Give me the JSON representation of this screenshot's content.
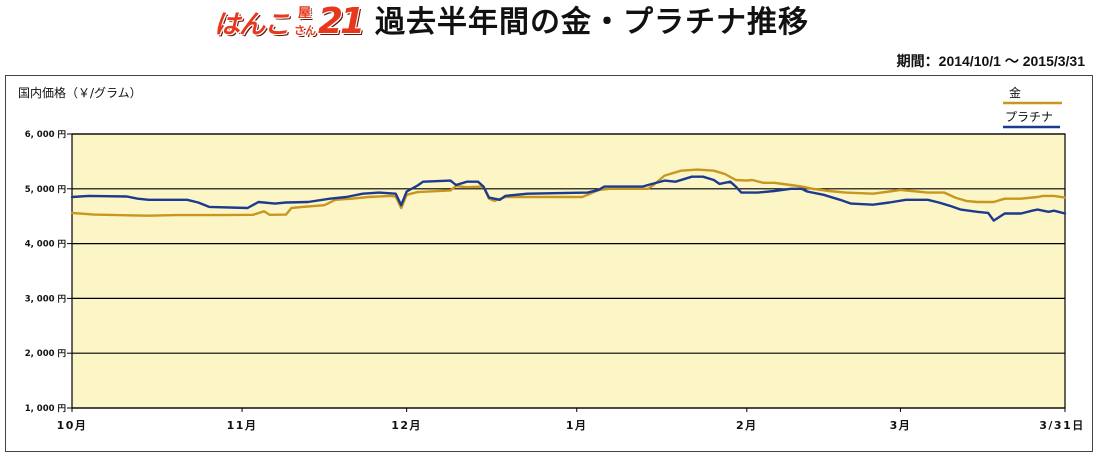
{
  "logo": {
    "main": "はんこ",
    "top": "屋",
    "bottom": "さん",
    "number": "21",
    "color": "#e5381c"
  },
  "chart_data": {
    "type": "line",
    "title": "過去半年間の金・プラチナ推移",
    "subtitle": "期間：2014/10/1 〜 2015/3/31",
    "ylabel": "国内価格（￥/グラム）",
    "xlim": [
      "2014-10-01",
      "2015-03-31"
    ],
    "ylim": [
      1000,
      6000
    ],
    "xticks": [
      "2014-10-01",
      "2014-11-01",
      "2014-12-01",
      "2015-01-01",
      "2015-02-01",
      "2015-03-01",
      "2015-03-31"
    ],
    "xtick_labels": [
      "10月",
      "11月",
      "12月",
      "1月",
      "2月",
      "3月",
      "3/31日"
    ],
    "yticks": [
      1000,
      2000,
      3000,
      4000,
      5000,
      6000
    ],
    "ytick_labels": [
      "1, 000 円",
      "2, 000 円",
      "3, 000 円",
      "4, 000 円",
      "5, 000 円",
      "6, 000 円"
    ],
    "grid": true,
    "legend": "top-right",
    "plot_background": "#fcf6c6",
    "series": [
      {
        "name": "金",
        "color": "#c9961f",
        "points": [
          [
            "2014-10-01",
            4560
          ],
          [
            "2014-10-05",
            4530
          ],
          [
            "2014-10-15",
            4510
          ],
          [
            "2014-10-20",
            4520
          ],
          [
            "2014-10-28",
            4520
          ],
          [
            "2014-11-03",
            4525
          ],
          [
            "2014-11-05",
            4590
          ],
          [
            "2014-11-06",
            4525
          ],
          [
            "2014-11-09",
            4530
          ],
          [
            "2014-11-10",
            4650
          ],
          [
            "2014-11-12",
            4670
          ],
          [
            "2014-11-16",
            4700
          ],
          [
            "2014-11-18",
            4800
          ],
          [
            "2014-11-21",
            4820
          ],
          [
            "2014-11-24",
            4850
          ],
          [
            "2014-11-28",
            4870
          ],
          [
            "2014-11-29",
            4860
          ],
          [
            "2014-11-30",
            4650
          ],
          [
            "2014-12-01",
            4890
          ],
          [
            "2014-12-03",
            4940
          ],
          [
            "2014-12-09",
            4970
          ],
          [
            "2014-12-10",
            5050
          ],
          [
            "2014-12-12",
            5030
          ],
          [
            "2014-12-15",
            5040
          ],
          [
            "2014-12-16",
            4820
          ],
          [
            "2014-12-17",
            4780
          ],
          [
            "2014-12-19",
            4850
          ],
          [
            "2015-01-02",
            4850
          ],
          [
            "2015-01-03",
            4890
          ],
          [
            "2015-01-05",
            4980
          ],
          [
            "2015-01-07",
            5000
          ],
          [
            "2015-01-14",
            5000
          ],
          [
            "2015-01-15",
            5070
          ],
          [
            "2015-01-17",
            5240
          ],
          [
            "2015-01-20",
            5330
          ],
          [
            "2015-01-23",
            5350
          ],
          [
            "2015-01-26",
            5330
          ],
          [
            "2015-01-28",
            5270
          ],
          [
            "2015-01-30",
            5160
          ],
          [
            "2015-02-01",
            5150
          ],
          [
            "2015-02-02",
            5160
          ],
          [
            "2015-02-04",
            5110
          ],
          [
            "2015-02-06",
            5110
          ],
          [
            "2015-02-09",
            5070
          ],
          [
            "2015-02-11",
            5040
          ],
          [
            "2015-02-13",
            5000
          ],
          [
            "2015-02-16",
            4960
          ],
          [
            "2015-02-19",
            4930
          ],
          [
            "2015-02-24",
            4910
          ],
          [
            "2015-02-27",
            4950
          ],
          [
            "2015-03-01",
            4980
          ],
          [
            "2015-03-04",
            4950
          ],
          [
            "2015-03-06",
            4930
          ],
          [
            "2015-03-09",
            4930
          ],
          [
            "2015-03-11",
            4840
          ],
          [
            "2015-03-13",
            4780
          ],
          [
            "2015-03-15",
            4760
          ],
          [
            "2015-03-18",
            4760
          ],
          [
            "2015-03-20",
            4820
          ],
          [
            "2015-03-23",
            4820
          ],
          [
            "2015-03-26",
            4850
          ],
          [
            "2015-03-27",
            4870
          ],
          [
            "2015-03-29",
            4870
          ],
          [
            "2015-03-31",
            4840
          ]
        ]
      },
      {
        "name": "プラチナ",
        "color": "#1c3a8f",
        "points": [
          [
            "2014-10-01",
            4850
          ],
          [
            "2014-10-04",
            4870
          ],
          [
            "2014-10-11",
            4860
          ],
          [
            "2014-10-13",
            4820
          ],
          [
            "2014-10-15",
            4800
          ],
          [
            "2014-10-22",
            4800
          ],
          [
            "2014-10-24",
            4750
          ],
          [
            "2014-10-26",
            4670
          ],
          [
            "2014-11-02",
            4650
          ],
          [
            "2014-11-04",
            4760
          ],
          [
            "2014-11-07",
            4730
          ],
          [
            "2014-11-09",
            4750
          ],
          [
            "2014-11-13",
            4760
          ],
          [
            "2014-11-17",
            4820
          ],
          [
            "2014-11-20",
            4850
          ],
          [
            "2014-11-23",
            4910
          ],
          [
            "2014-11-26",
            4930
          ],
          [
            "2014-11-29",
            4910
          ],
          [
            "2014-11-30",
            4700
          ],
          [
            "2014-12-01",
            4950
          ],
          [
            "2014-12-03",
            5060
          ],
          [
            "2014-12-04",
            5130
          ],
          [
            "2014-12-09",
            5150
          ],
          [
            "2014-12-10",
            5070
          ],
          [
            "2014-12-12",
            5130
          ],
          [
            "2014-12-14",
            5130
          ],
          [
            "2014-12-15",
            5040
          ],
          [
            "2014-12-16",
            4840
          ],
          [
            "2014-12-18",
            4800
          ],
          [
            "2014-12-19",
            4870
          ],
          [
            "2014-12-23",
            4910
          ],
          [
            "2015-01-03",
            4930
          ],
          [
            "2015-01-05",
            4980
          ],
          [
            "2015-01-06",
            5040
          ],
          [
            "2015-01-13",
            5040
          ],
          [
            "2015-01-14",
            5070
          ],
          [
            "2015-01-17",
            5150
          ],
          [
            "2015-01-19",
            5130
          ],
          [
            "2015-01-22",
            5220
          ],
          [
            "2015-01-24",
            5220
          ],
          [
            "2015-01-26",
            5160
          ],
          [
            "2015-01-27",
            5090
          ],
          [
            "2015-01-29",
            5130
          ],
          [
            "2015-01-30",
            5040
          ],
          [
            "2015-01-31",
            4930
          ],
          [
            "2015-02-03",
            4930
          ],
          [
            "2015-02-06",
            4960
          ],
          [
            "2015-02-09",
            5000
          ],
          [
            "2015-02-11",
            5000
          ],
          [
            "2015-02-12",
            4950
          ],
          [
            "2015-02-15",
            4890
          ],
          [
            "2015-02-18",
            4800
          ],
          [
            "2015-02-20",
            4730
          ],
          [
            "2015-02-24",
            4710
          ],
          [
            "2015-02-27",
            4750
          ],
          [
            "2015-03-02",
            4800
          ],
          [
            "2015-03-06",
            4800
          ],
          [
            "2015-03-08",
            4750
          ],
          [
            "2015-03-10",
            4690
          ],
          [
            "2015-03-12",
            4620
          ],
          [
            "2015-03-15",
            4580
          ],
          [
            "2015-03-17",
            4560
          ],
          [
            "2015-03-18",
            4420
          ],
          [
            "2015-03-20",
            4550
          ],
          [
            "2015-03-23",
            4550
          ],
          [
            "2015-03-25",
            4600
          ],
          [
            "2015-03-26",
            4620
          ],
          [
            "2015-03-28",
            4580
          ],
          [
            "2015-03-29",
            4600
          ],
          [
            "2015-03-31",
            4550
          ]
        ]
      }
    ]
  }
}
